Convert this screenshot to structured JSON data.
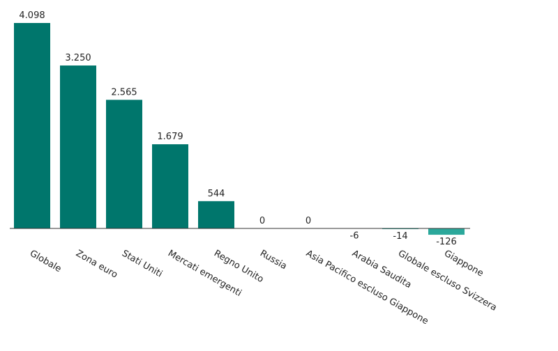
{
  "chart_data": {
    "type": "bar",
    "categories": [
      "Globale",
      "Zona euro",
      "Stati Uniti",
      "Mercati emergenti",
      "Regno Unito",
      "Russia",
      "Asia Pacifico escluso Giappone",
      "Arabia Saudita",
      "Globale escluso Svizzera",
      "Giappone"
    ],
    "values": [
      4098,
      3250,
      2565,
      1679,
      544,
      0,
      0,
      -6,
      -14,
      -126
    ],
    "value_labels": [
      "4.098",
      "3.250",
      "2.565",
      "1.679",
      "544",
      "0",
      "0",
      "-6",
      "-14",
      "-126"
    ],
    "color": "#00766c",
    "negative_color": "#2ba89b"
  }
}
